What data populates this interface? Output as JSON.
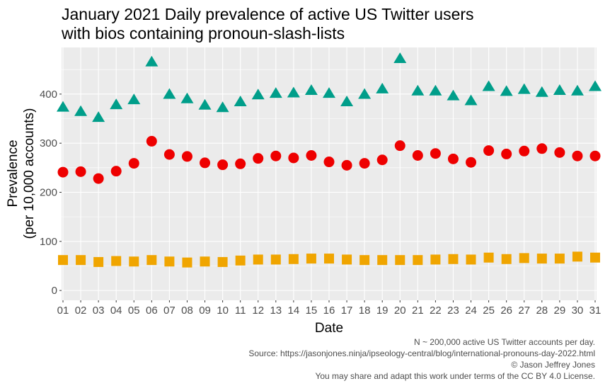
{
  "chart_data": {
    "type": "scatter",
    "title_line1": "January 2021 Daily prevalence of active US Twitter users",
    "title_line2": "with bios containing pronoun-slash-lists",
    "xlabel": "Date",
    "ylabel_line1": "Prevalence",
    "ylabel_line2": "(per 10,000 accounts)",
    "categories": [
      "01",
      "02",
      "03",
      "04",
      "05",
      "06",
      "07",
      "08",
      "09",
      "10",
      "11",
      "12",
      "13",
      "14",
      "15",
      "16",
      "17",
      "18",
      "19",
      "20",
      "21",
      "22",
      "23",
      "24",
      "25",
      "26",
      "27",
      "28",
      "29",
      "30",
      "31"
    ],
    "ylim": [
      -20,
      495
    ],
    "yticks": [
      0,
      100,
      200,
      300,
      400
    ],
    "grid": true,
    "legend": "none",
    "series": [
      {
        "shape": "triangle",
        "color": "#009E8A",
        "values": [
          373,
          364,
          352,
          378,
          388,
          465,
          399,
          390,
          377,
          372,
          384,
          398,
          401,
          402,
          407,
          401,
          384,
          399,
          410,
          472,
          406,
          406,
          396,
          386,
          415,
          405,
          409,
          403,
          407,
          406,
          415
        ]
      },
      {
        "shape": "circle",
        "color": "#EE0000",
        "values": [
          241,
          242,
          228,
          243,
          259,
          304,
          277,
          273,
          260,
          256,
          258,
          269,
          274,
          270,
          275,
          262,
          255,
          259,
          266,
          295,
          275,
          279,
          268,
          261,
          285,
          278,
          284,
          289,
          281,
          274,
          274
        ]
      },
      {
        "shape": "square",
        "color": "#F0A500",
        "values": [
          62,
          62,
          58,
          60,
          59,
          62,
          59,
          57,
          59,
          58,
          61,
          63,
          63,
          64,
          65,
          65,
          63,
          62,
          62,
          62,
          62,
          63,
          64,
          63,
          67,
          64,
          66,
          65,
          65,
          69,
          67
        ]
      }
    ],
    "caption": [
      "N ~ 200,000 active US Twitter accounts per day.",
      "Source: https://jasonjones.ninja/ipseology-central/blog/international-pronouns-day-2022.html",
      "© Jason Jeffrey Jones",
      "You may share and adapt this work under terms of the CC BY 4.0 License."
    ]
  }
}
